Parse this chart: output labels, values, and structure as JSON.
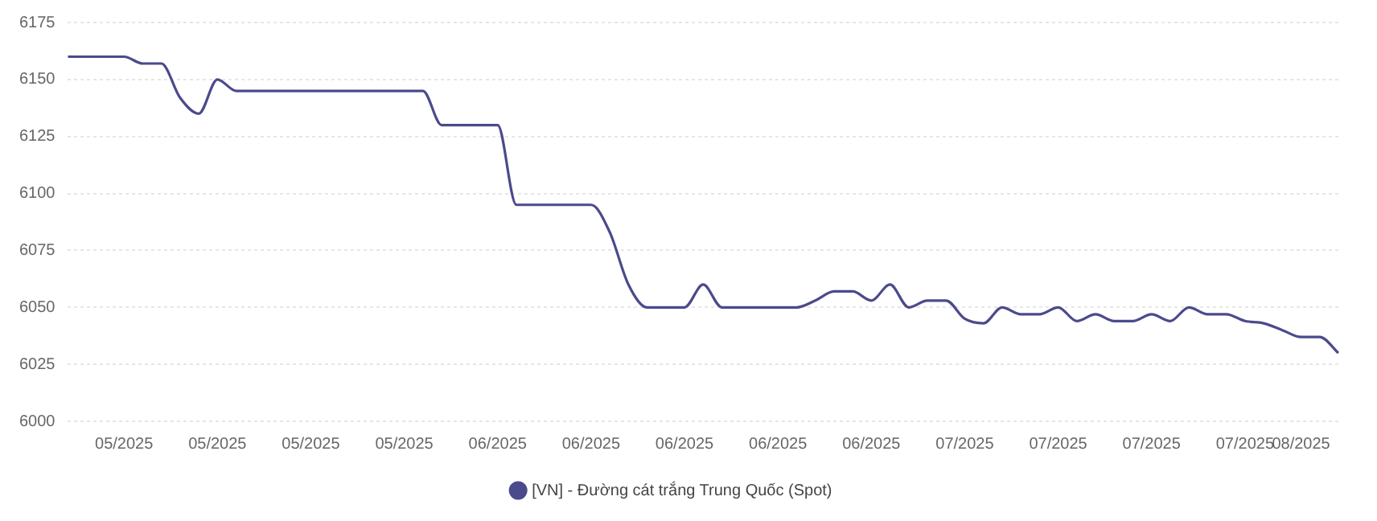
{
  "chart_data": {
    "type": "line",
    "categories": [
      null,
      null,
      null,
      "05/2025",
      null,
      null,
      null,
      null,
      "05/2025",
      null,
      null,
      null,
      null,
      "05/2025",
      null,
      null,
      null,
      null,
      "05/2025",
      null,
      null,
      null,
      null,
      "06/2025",
      null,
      null,
      null,
      null,
      "06/2025",
      null,
      null,
      null,
      null,
      "06/2025",
      null,
      null,
      null,
      null,
      "06/2025",
      null,
      null,
      null,
      null,
      "06/2025",
      null,
      null,
      null,
      null,
      "07/2025",
      null,
      null,
      null,
      null,
      "07/2025",
      null,
      null,
      null,
      null,
      "07/2025",
      null,
      null,
      null,
      null,
      "07/2025",
      null,
      null,
      "08/2025",
      null,
      null
    ],
    "series": [
      {
        "name": "[VN] - Đường cát trắng Trung Quốc (Spot)",
        "color": "#4b4a8c",
        "values": [
          6160,
          6160,
          6160,
          6160,
          6157,
          6157,
          6142,
          6135,
          6150,
          6145,
          6145,
          6145,
          6145,
          6145,
          6145,
          6145,
          6145,
          6145,
          6145,
          6145,
          6130,
          6130,
          6130,
          6130,
          6095,
          6095,
          6095,
          6095,
          6095,
          6083,
          6060,
          6050,
          6050,
          6050,
          6060,
          6050,
          6050,
          6050,
          6050,
          6050,
          6053,
          6057,
          6057,
          6053,
          6060,
          6050,
          6053,
          6053,
          6045,
          6043,
          6050,
          6047,
          6047,
          6050,
          6044,
          6047,
          6044,
          6044,
          6047,
          6044,
          6050,
          6047,
          6047,
          6044,
          6043,
          6040,
          6037,
          6037,
          6030
        ]
      }
    ],
    "ylim": [
      6000,
      6175
    ],
    "yticks": [
      6000,
      6025,
      6050,
      6075,
      6100,
      6125,
      6150,
      6175
    ],
    "grid": "y",
    "legend": "bottom",
    "marker": "none",
    "line_style": "solid"
  }
}
